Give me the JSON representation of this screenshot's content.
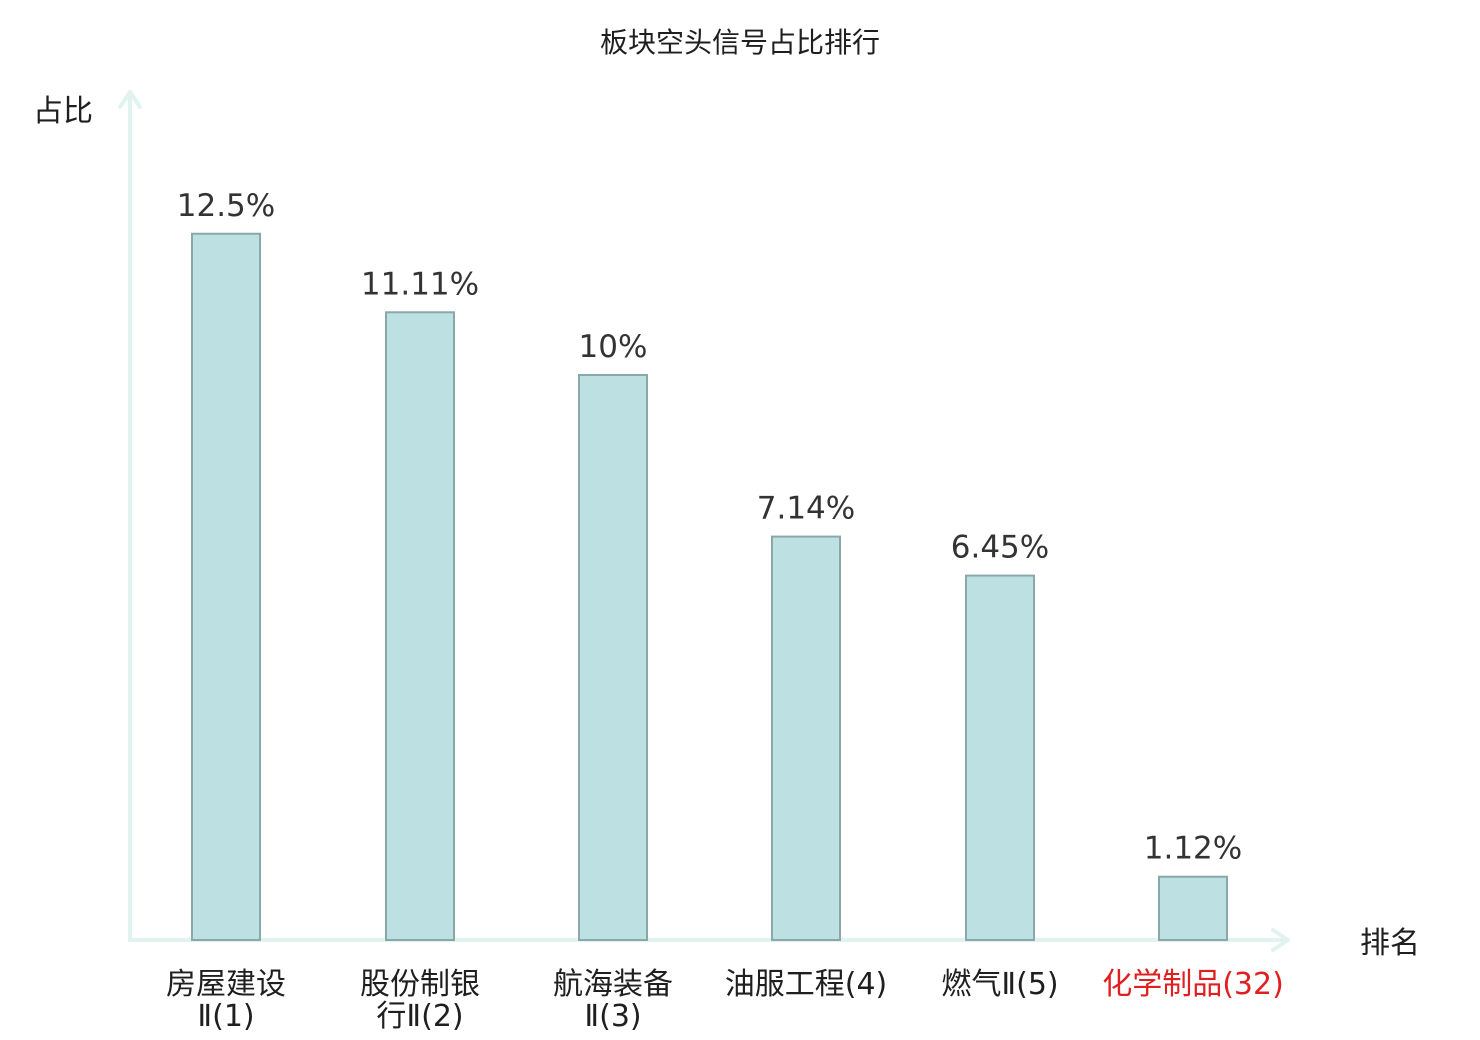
{
  "chart_data": {
    "type": "bar",
    "title": "板块空头信号占比排行",
    "ylabel": "占比",
    "xlabel": "排名",
    "value_unit": "%",
    "ylim": [
      0,
      14
    ],
    "grid": false,
    "legend": "none",
    "categories": [
      {
        "name_lines": [
          "房屋建设",
          "Ⅱ(1)"
        ],
        "highlight": false
      },
      {
        "name_lines": [
          "股份制银",
          "行Ⅱ(2)"
        ],
        "highlight": false
      },
      {
        "name_lines": [
          "航海装备",
          "Ⅱ(3)"
        ],
        "highlight": false
      },
      {
        "name_lines": [
          "油服工程(4)"
        ],
        "highlight": false
      },
      {
        "name_lines": [
          "燃气Ⅱ(5)"
        ],
        "highlight": false
      },
      {
        "name_lines": [
          "化学制品(32)"
        ],
        "highlight": true
      }
    ],
    "values": [
      12.5,
      11.11,
      10,
      7.14,
      6.45,
      1.12
    ],
    "value_labels": [
      "12.5%",
      "11.11%",
      "10%",
      "7.14%",
      "6.45%",
      "1.12%"
    ],
    "colors": {
      "bar_fill": "#bde1e3",
      "bar_stroke": "#8aa8aa",
      "axis": "#e1f3f1",
      "label_normal": "#1f1f1f",
      "label_highlight": "#e02020"
    }
  }
}
